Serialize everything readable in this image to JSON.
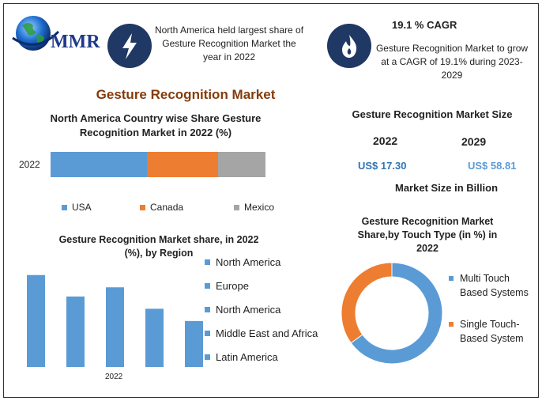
{
  "brand": {
    "text": "MMR"
  },
  "header": {
    "fact1": "North America held largest share of Gesture Recognition Market the year in 2022",
    "cagr_title": "19.1 % CAGR",
    "cagr_text": "Gesture Recognition Market to grow at a CAGR of 19.1% during 2023-2029"
  },
  "main_title": "Gesture Recognition Market",
  "colors": {
    "blue": "#5b9bd5",
    "orange": "#ed7d31",
    "gray": "#a5a5a5",
    "navy": "#1f3864",
    "title_brown": "#843c0c",
    "value_blue": "#2e75b6"
  },
  "market_size": {
    "title": "Gesture Recognition Market Size",
    "year1": "2022",
    "year2": "2029",
    "value1": "US$ 17.30",
    "value2": "US$ 58.81",
    "unit": "Market Size in Billion"
  },
  "chart_data": [
    {
      "type": "bar",
      "orientation": "horizontal-stacked",
      "title": "North America  Country wise Share Gesture Recognition Market in 2022 (%)",
      "categories": [
        "2022"
      ],
      "series": [
        {
          "name": "USA",
          "values": [
            45
          ]
        },
        {
          "name": "Canada",
          "values": [
            33
          ]
        },
        {
          "name": "Mexico",
          "values": [
            22
          ]
        }
      ],
      "legend": "bottom"
    },
    {
      "type": "bar",
      "title": "Gesture Recognition  Market share, in 2022 (%), by Region",
      "categories": [
        "North America",
        "Europe",
        "North America",
        "Middle East and Africa",
        "Latin America"
      ],
      "values": [
        30,
        23,
        26,
        19,
        15
      ],
      "xlabel_tick": "2022",
      "ylim": [
        0,
        32
      ],
      "legend": "right"
    },
    {
      "type": "pie",
      "variant": "donut",
      "title": "Gesture Recognition Market Share,by Touch Type (in %) in 2022",
      "categories": [
        "Multi Touch Based Systems",
        "Single Touch-Based System"
      ],
      "values": [
        65,
        35
      ],
      "legend": "right"
    }
  ]
}
